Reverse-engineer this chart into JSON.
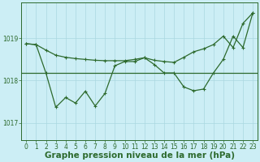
{
  "background_color": "#cceef5",
  "grid_color": "#aad8e0",
  "line_color": "#2d6a2d",
  "xlabel": "Graphe pression niveau de la mer (hPa)",
  "xlabel_fontsize": 7.5,
  "ylim": [
    1016.6,
    1019.85
  ],
  "xlim": [
    -0.5,
    23.5
  ],
  "yticks": [
    1017,
    1018,
    1019
  ],
  "xticks": [
    0,
    1,
    2,
    3,
    4,
    5,
    6,
    7,
    8,
    9,
    10,
    11,
    12,
    13,
    14,
    15,
    16,
    17,
    18,
    19,
    20,
    21,
    22,
    23
  ],
  "tick_fontsize": 5.5,
  "flat_y": 1018.18,
  "series1_x": [
    0,
    1,
    2,
    3,
    4,
    5,
    6,
    7,
    8,
    9,
    10,
    11,
    12,
    13,
    14,
    15,
    16,
    17,
    18,
    19,
    20,
    21,
    22,
    23
  ],
  "series1_y": [
    1018.87,
    1018.85,
    1018.72,
    1018.6,
    1018.55,
    1018.52,
    1018.5,
    1018.48,
    1018.47,
    1018.47,
    1018.47,
    1018.5,
    1018.54,
    1018.48,
    1018.45,
    1018.43,
    1018.55,
    1018.68,
    1018.75,
    1018.85,
    1019.05,
    1018.78,
    1019.35,
    1019.6
  ],
  "series2_x": [
    0,
    1,
    2,
    3,
    4,
    5,
    6,
    7,
    8,
    9,
    10,
    11,
    12,
    13,
    14,
    15,
    16,
    17,
    18,
    19,
    20,
    21,
    22,
    23
  ],
  "series2_y": [
    1018.87,
    1018.85,
    1018.18,
    1017.37,
    1017.6,
    1017.47,
    1017.75,
    1017.4,
    1017.7,
    1018.35,
    1018.45,
    1018.45,
    1018.54,
    1018.38,
    1018.18,
    1018.18,
    1017.85,
    1017.76,
    1017.8,
    1018.18,
    1018.5,
    1019.05,
    1018.78,
    1019.6
  ]
}
